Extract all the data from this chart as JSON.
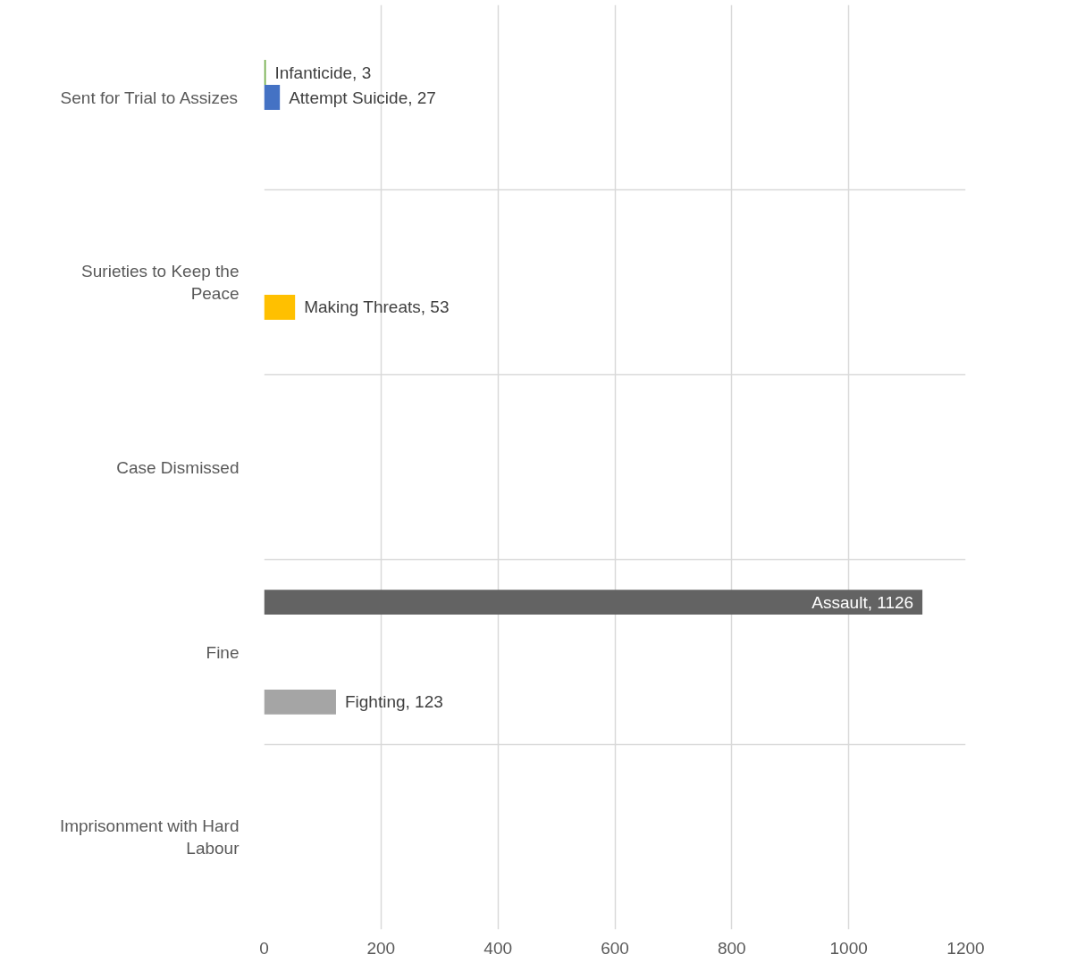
{
  "chart_data": {
    "type": "bar",
    "orientation": "horizontal",
    "categories": [
      "Sent for Trial to Assizes",
      "Surieties to Keep the Peace",
      "Case Dismissed",
      "Fine",
      "Imprisonment with Hard Labour"
    ],
    "series": [
      {
        "color": "#a5a5a5",
        "values": [
          null,
          null,
          null,
          123,
          null
        ],
        "value_labels": [
          null,
          null,
          null,
          "Fighting, 123",
          null
        ]
      },
      {
        "color": "#ffc000",
        "values": [
          null,
          53,
          null,
          null,
          null
        ],
        "value_labels": [
          null,
          "Making Threats, 53",
          null,
          null,
          null
        ]
      },
      {
        "color": "#4472c4",
        "values": [
          27,
          null,
          null,
          null,
          null
        ],
        "value_labels": [
          "Attempt Suicide, 27",
          null,
          null,
          null,
          null
        ]
      },
      {
        "color": "#70ad47",
        "values": [
          3,
          null,
          null,
          null,
          null
        ],
        "value_labels": [
          "Infanticide, 3",
          null,
          null,
          null,
          null
        ]
      },
      {
        "color": "#636363",
        "values": [
          null,
          null,
          null,
          1126,
          null
        ],
        "value_labels": [
          null,
          null,
          null,
          "Assault, 1126",
          null
        ]
      }
    ],
    "xlim": [
      0,
      1200
    ],
    "xticks": [
      0,
      200,
      400,
      600,
      800,
      1000,
      1200
    ],
    "grid": true
  }
}
